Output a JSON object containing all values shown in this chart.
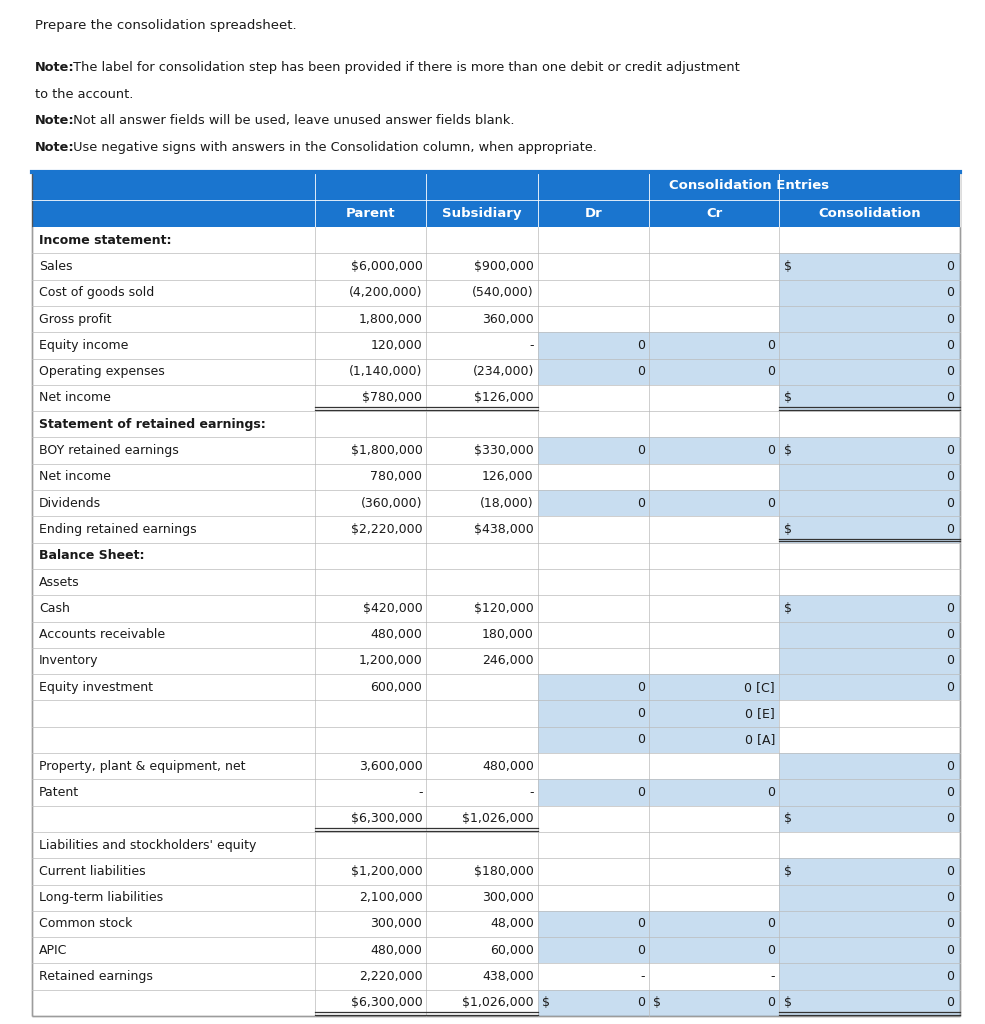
{
  "header_text": "Prepare the consolidation spreadsheet.",
  "notes": [
    {
      "bold": "Note:",
      "normal": " The label for consolidation step has been provided if there is more than one debit or credit adjustment\nto the account."
    },
    {
      "bold": "Note:",
      "normal": " Not all answer fields will be used, leave unused answer fields blank."
    },
    {
      "bold": "Note:",
      "normal": " Use negative signs with answers in the Consolidation column, when appropriate."
    }
  ],
  "rows": [
    {
      "label": "Income statement:",
      "bold": true,
      "parent": "",
      "subsidiary": "",
      "dr": null,
      "cr": null,
      "consol": null,
      "dr_bg": false,
      "cr_bg": false,
      "consol_bg": false,
      "dul_par": false,
      "dul_con": false
    },
    {
      "label": "Sales",
      "bold": false,
      "parent": "$6,000,000",
      "subsidiary": "$900,000",
      "dr": null,
      "cr": null,
      "consol": "0",
      "dollar_sign": true,
      "dr_bg": false,
      "cr_bg": false,
      "consol_bg": true,
      "dul_par": false,
      "dul_con": false
    },
    {
      "label": "Cost of goods sold",
      "bold": false,
      "parent": "(4,200,000)",
      "subsidiary": "(540,000)",
      "dr": null,
      "cr": null,
      "consol": "0",
      "dr_bg": false,
      "cr_bg": false,
      "consol_bg": true,
      "dul_par": false,
      "dul_con": false
    },
    {
      "label": "Gross profit",
      "bold": false,
      "parent": "1,800,000",
      "subsidiary": "360,000",
      "dr": null,
      "cr": null,
      "consol": "0",
      "dr_bg": false,
      "cr_bg": false,
      "consol_bg": true,
      "dul_par": false,
      "dul_con": false
    },
    {
      "label": "Equity income",
      "bold": false,
      "parent": "120,000",
      "subsidiary": "-",
      "dr": "0",
      "cr": "0",
      "consol": "0",
      "dr_bg": true,
      "cr_bg": true,
      "consol_bg": true,
      "dul_par": false,
      "dul_con": false
    },
    {
      "label": "Operating expenses",
      "bold": false,
      "parent": "(1,140,000)",
      "subsidiary": "(234,000)",
      "dr": "0",
      "cr": "0",
      "consol": "0",
      "dr_bg": true,
      "cr_bg": true,
      "consol_bg": true,
      "dul_par": false,
      "dul_con": false
    },
    {
      "label": "Net income",
      "bold": false,
      "parent": "$780,000",
      "subsidiary": "$126,000",
      "dr": null,
      "cr": null,
      "consol": "0",
      "dollar_sign": true,
      "dr_bg": false,
      "cr_bg": false,
      "consol_bg": true,
      "dul_par": true,
      "dul_con": true
    },
    {
      "label": "Statement of retained earnings:",
      "bold": true,
      "parent": "",
      "subsidiary": "",
      "dr": null,
      "cr": null,
      "consol": null,
      "dr_bg": false,
      "cr_bg": false,
      "consol_bg": false,
      "dul_par": false,
      "dul_con": false
    },
    {
      "label": "BOY retained earnings",
      "bold": false,
      "parent": "$1,800,000",
      "subsidiary": "$330,000",
      "dr": "0",
      "cr": "0",
      "consol": "0",
      "dollar_sign": true,
      "dr_bg": true,
      "cr_bg": true,
      "consol_bg": true,
      "dul_par": false,
      "dul_con": false
    },
    {
      "label": "Net income",
      "bold": false,
      "parent": "780,000",
      "subsidiary": "126,000",
      "dr": null,
      "cr": null,
      "consol": "0",
      "dr_bg": false,
      "cr_bg": false,
      "consol_bg": true,
      "dul_par": false,
      "dul_con": false
    },
    {
      "label": "Dividends",
      "bold": false,
      "parent": "(360,000)",
      "subsidiary": "(18,000)",
      "dr": "0",
      "cr": "0",
      "consol": "0",
      "dr_bg": true,
      "cr_bg": true,
      "consol_bg": true,
      "dul_par": false,
      "dul_con": false
    },
    {
      "label": "Ending retained earnings",
      "bold": false,
      "parent": "$2,220,000",
      "subsidiary": "$438,000",
      "dr": null,
      "cr": null,
      "consol": "0",
      "dollar_sign": true,
      "dr_bg": false,
      "cr_bg": false,
      "consol_bg": true,
      "dul_par": false,
      "dul_con": true
    },
    {
      "label": "Balance Sheet:",
      "bold": true,
      "parent": "",
      "subsidiary": "",
      "dr": null,
      "cr": null,
      "consol": null,
      "dr_bg": false,
      "cr_bg": false,
      "consol_bg": false,
      "dul_par": false,
      "dul_con": false
    },
    {
      "label": "Assets",
      "bold": false,
      "parent": "",
      "subsidiary": "",
      "dr": null,
      "cr": null,
      "consol": null,
      "dr_bg": false,
      "cr_bg": false,
      "consol_bg": false,
      "dul_par": false,
      "dul_con": false
    },
    {
      "label": "Cash",
      "bold": false,
      "parent": "$420,000",
      "subsidiary": "$120,000",
      "dr": null,
      "cr": null,
      "consol": "0",
      "dollar_sign": true,
      "dr_bg": false,
      "cr_bg": false,
      "consol_bg": true,
      "dul_par": false,
      "dul_con": false
    },
    {
      "label": "Accounts receivable",
      "bold": false,
      "parent": "480,000",
      "subsidiary": "180,000",
      "dr": null,
      "cr": null,
      "consol": "0",
      "dr_bg": false,
      "cr_bg": false,
      "consol_bg": true,
      "dul_par": false,
      "dul_con": false
    },
    {
      "label": "Inventory",
      "bold": false,
      "parent": "1,200,000",
      "subsidiary": "246,000",
      "dr": null,
      "cr": null,
      "consol": "0",
      "dr_bg": false,
      "cr_bg": false,
      "consol_bg": true,
      "dul_par": false,
      "dul_con": false
    },
    {
      "label": "Equity investment",
      "bold": false,
      "parent": "600,000",
      "subsidiary": "",
      "dr": "0",
      "cr": "0 [C]",
      "consol": "0",
      "dr_bg": true,
      "cr_bg": true,
      "consol_bg": true,
      "dul_par": false,
      "dul_con": false
    },
    {
      "label": "",
      "bold": false,
      "parent": "",
      "subsidiary": "",
      "dr": "0",
      "cr": "0 [E]",
      "consol": null,
      "dr_bg": true,
      "cr_bg": true,
      "consol_bg": false,
      "dul_par": false,
      "dul_con": false
    },
    {
      "label": "",
      "bold": false,
      "parent": "",
      "subsidiary": "",
      "dr": "0",
      "cr": "0 [A]",
      "consol": null,
      "dr_bg": true,
      "cr_bg": true,
      "consol_bg": false,
      "dul_par": false,
      "dul_con": false
    },
    {
      "label": "Property, plant & equipment, net",
      "bold": false,
      "parent": "3,600,000",
      "subsidiary": "480,000",
      "dr": null,
      "cr": null,
      "consol": "0",
      "dr_bg": false,
      "cr_bg": false,
      "consol_bg": true,
      "dul_par": false,
      "dul_con": false
    },
    {
      "label": "Patent",
      "bold": false,
      "parent": "-",
      "subsidiary": "-",
      "dr": "0",
      "cr": "0",
      "consol": "0",
      "dr_bg": true,
      "cr_bg": true,
      "consol_bg": true,
      "dul_par": false,
      "dul_con": false
    },
    {
      "label": "",
      "bold": false,
      "parent": "$6,300,000",
      "subsidiary": "$1,026,000",
      "dr": null,
      "cr": null,
      "consol": "0",
      "dollar_sign": true,
      "dr_bg": false,
      "cr_bg": false,
      "consol_bg": true,
      "dul_par": true,
      "dul_con": false,
      "is_total": true
    },
    {
      "label": "Liabilities and stockholders' equity",
      "bold": false,
      "parent": "",
      "subsidiary": "",
      "dr": null,
      "cr": null,
      "consol": null,
      "dr_bg": false,
      "cr_bg": false,
      "consol_bg": false,
      "dul_par": false,
      "dul_con": false
    },
    {
      "label": "Current liabilities",
      "bold": false,
      "parent": "$1,200,000",
      "subsidiary": "$180,000",
      "dr": null,
      "cr": null,
      "consol": "0",
      "dollar_sign": true,
      "dr_bg": false,
      "cr_bg": false,
      "consol_bg": true,
      "dul_par": false,
      "dul_con": false
    },
    {
      "label": "Long-term liabilities",
      "bold": false,
      "parent": "2,100,000",
      "subsidiary": "300,000",
      "dr": null,
      "cr": null,
      "consol": "0",
      "dr_bg": false,
      "cr_bg": false,
      "consol_bg": true,
      "dul_par": false,
      "dul_con": false
    },
    {
      "label": "Common stock",
      "bold": false,
      "parent": "300,000",
      "subsidiary": "48,000",
      "dr": "0",
      "cr": "0",
      "consol": "0",
      "dr_bg": true,
      "cr_bg": true,
      "consol_bg": true,
      "dul_par": false,
      "dul_con": false
    },
    {
      "label": "APIC",
      "bold": false,
      "parent": "480,000",
      "subsidiary": "60,000",
      "dr": "0",
      "cr": "0",
      "consol": "0",
      "dr_bg": true,
      "cr_bg": true,
      "consol_bg": true,
      "dul_par": false,
      "dul_con": false
    },
    {
      "label": "Retained earnings",
      "bold": false,
      "parent": "2,220,000",
      "subsidiary": "438,000",
      "dr": "-",
      "cr": "-",
      "consol": "0",
      "dr_bg": false,
      "cr_bg": false,
      "consol_bg": true,
      "dul_par": false,
      "dul_con": false
    },
    {
      "label": "",
      "bold": false,
      "parent": "$6,300,000",
      "subsidiary": "$1,026,000",
      "dr": "0",
      "cr": "0",
      "consol": "0",
      "dollar_sign": true,
      "dollar_sign_dr": true,
      "dollar_sign_cr": true,
      "dr_bg": true,
      "cr_bg": true,
      "consol_bg": true,
      "dul_par": true,
      "dul_con": true,
      "is_total": true
    }
  ],
  "header_bg": "#1A75CF",
  "light_blue": "#C8DDF0",
  "white": "#FFFFFF",
  "text_color": "#1A1A1A",
  "border_color": "#BBBBBB"
}
